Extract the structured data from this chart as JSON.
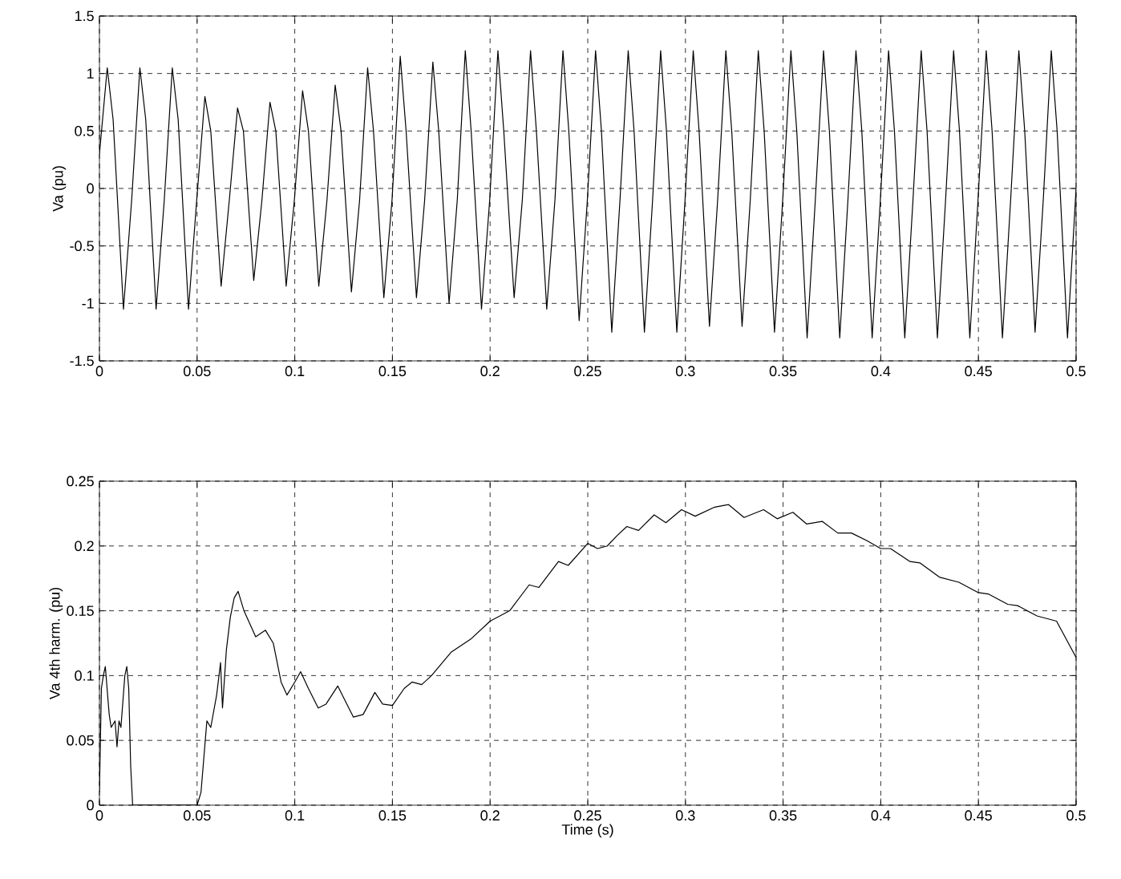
{
  "chart_data": [
    {
      "type": "line",
      "ylabel": "Va (pu)",
      "xlim": [
        0,
        0.5
      ],
      "ylim": [
        -1.5,
        1.5
      ],
      "grid": true,
      "xticks": [
        0,
        0.05,
        0.1,
        0.15,
        0.2,
        0.25,
        0.3,
        0.35,
        0.4,
        0.45,
        0.5
      ],
      "yticks": [
        -1.5,
        -1,
        -0.5,
        0,
        0.5,
        1,
        1.5
      ],
      "series": [
        {
          "color": "#000000",
          "x": [
            0,
            0.004,
            0.007,
            0.0123,
            0.0165,
            0.0207,
            0.0237,
            0.029,
            0.0332,
            0.0373,
            0.0403,
            0.0456,
            0.0498,
            0.054,
            0.057,
            0.0623,
            0.0665,
            0.0707,
            0.0737,
            0.079,
            0.0832,
            0.0873,
            0.0903,
            0.0956,
            0.0998,
            0.104,
            0.107,
            0.1123,
            0.1165,
            0.1207,
            0.1237,
            0.129,
            0.1332,
            0.1373,
            0.1403,
            0.1456,
            0.1498,
            0.154,
            0.157,
            0.1623,
            0.1665,
            0.1707,
            0.1737,
            0.179,
            0.1832,
            0.1873,
            0.1903,
            0.1956,
            0.1998,
            0.204,
            0.207,
            0.2123,
            0.2165,
            0.2207,
            0.2237,
            0.229,
            0.2332,
            0.2373,
            0.2403,
            0.2456,
            0.2498,
            0.254,
            0.257,
            0.2623,
            0.2665,
            0.2707,
            0.2737,
            0.279,
            0.2832,
            0.2873,
            0.2903,
            0.2956,
            0.2998,
            0.304,
            0.307,
            0.3123,
            0.3165,
            0.3207,
            0.3237,
            0.329,
            0.3332,
            0.3373,
            0.3403,
            0.3456,
            0.3498,
            0.354,
            0.357,
            0.3623,
            0.3665,
            0.3707,
            0.3737,
            0.379,
            0.3832,
            0.3873,
            0.3903,
            0.3956,
            0.3998,
            0.404,
            0.407,
            0.4123,
            0.4165,
            0.4207,
            0.4237,
            0.429,
            0.4332,
            0.4373,
            0.4403,
            0.4456,
            0.4498,
            0.454,
            0.457,
            0.4623,
            0.4665,
            0.4707,
            0.4737,
            0.479,
            0.4832,
            0.4873,
            0.4903,
            0.4956,
            0.5
          ],
          "values": [
            0.3,
            1.05,
            0.6,
            -1.05,
            -0.1,
            1.05,
            0.6,
            -1.05,
            -0.1,
            1.05,
            0.6,
            -1.05,
            -0.1,
            0.8,
            0.5,
            -0.85,
            -0.1,
            0.7,
            0.5,
            -0.8,
            -0.1,
            0.75,
            0.5,
            -0.85,
            -0.1,
            0.85,
            0.5,
            -0.85,
            -0.1,
            0.9,
            0.5,
            -0.9,
            -0.1,
            1.05,
            0.5,
            -0.95,
            -0.1,
            1.15,
            0.5,
            -0.95,
            -0.1,
            1.1,
            0.5,
            -1.0,
            -0.1,
            1.2,
            0.5,
            -1.05,
            -0.1,
            1.2,
            0.5,
            -0.95,
            -0.1,
            1.2,
            0.5,
            -1.05,
            -0.1,
            1.2,
            0.5,
            -1.15,
            -0.1,
            1.2,
            0.5,
            -1.25,
            -0.1,
            1.2,
            0.5,
            -1.25,
            -0.1,
            1.2,
            0.5,
            -1.25,
            -0.1,
            1.2,
            0.5,
            -1.2,
            -0.1,
            1.2,
            0.5,
            -1.2,
            -0.1,
            1.2,
            0.5,
            -1.25,
            -0.1,
            1.2,
            0.5,
            -1.3,
            -0.1,
            1.2,
            0.5,
            -1.3,
            -0.1,
            1.2,
            0.5,
            -1.3,
            -0.1,
            1.2,
            0.5,
            -1.3,
            -0.1,
            1.2,
            0.5,
            -1.3,
            -0.1,
            1.2,
            0.5,
            -1.3,
            -0.1,
            1.2,
            0.5,
            -1.3,
            -0.1,
            1.2,
            0.5,
            -1.25,
            -0.1,
            1.2,
            0.5,
            -1.3,
            0.0
          ]
        }
      ]
    },
    {
      "type": "line",
      "xlabel": "Time (s)",
      "ylabel": "Va 4th harm. (pu)",
      "xlim": [
        0,
        0.5
      ],
      "ylim": [
        0,
        0.25
      ],
      "grid": true,
      "xticks": [
        0,
        0.05,
        0.1,
        0.15,
        0.2,
        0.25,
        0.3,
        0.35,
        0.4,
        0.45,
        0.5
      ],
      "yticks": [
        0,
        0.05,
        0.1,
        0.15,
        0.2,
        0.25
      ],
      "series": [
        {
          "color": "#000000",
          "x": [
            0,
            0.001,
            0.002,
            0.003,
            0.005,
            0.006,
            0.008,
            0.009,
            0.01,
            0.011,
            0.013,
            0.014,
            0.015,
            0.016,
            0.017,
            0.05,
            0.052,
            0.055,
            0.057,
            0.06,
            0.062,
            0.063,
            0.065,
            0.067,
            0.069,
            0.071,
            0.074,
            0.08,
            0.085,
            0.089,
            0.093,
            0.096,
            0.1,
            0.103,
            0.107,
            0.112,
            0.116,
            0.122,
            0.126,
            0.13,
            0.135,
            0.141,
            0.145,
            0.15,
            0.156,
            0.16,
            0.165,
            0.17,
            0.18,
            0.19,
            0.2,
            0.21,
            0.22,
            0.225,
            0.235,
            0.24,
            0.25,
            0.255,
            0.26,
            0.265,
            0.27,
            0.276,
            0.284,
            0.29,
            0.298,
            0.305,
            0.315,
            0.322,
            0.33,
            0.34,
            0.347,
            0.355,
            0.362,
            0.37,
            0.378,
            0.385,
            0.393,
            0.4,
            0.405,
            0.415,
            0.42,
            0.43,
            0.44,
            0.45,
            0.455,
            0.465,
            0.47,
            0.48,
            0.49,
            0.5
          ],
          "values": [
            0.01,
            0.09,
            0.1,
            0.107,
            0.07,
            0.06,
            0.065,
            0.045,
            0.065,
            0.06,
            0.1,
            0.107,
            0.09,
            0.03,
            0.0,
            0.0,
            0.01,
            0.065,
            0.06,
            0.085,
            0.11,
            0.075,
            0.12,
            0.145,
            0.16,
            0.165,
            0.15,
            0.13,
            0.135,
            0.125,
            0.095,
            0.085,
            0.095,
            0.103,
            0.09,
            0.075,
            0.078,
            0.092,
            0.08,
            0.068,
            0.07,
            0.087,
            0.078,
            0.077,
            0.09,
            0.095,
            0.093,
            0.1,
            0.118,
            0.128,
            0.142,
            0.15,
            0.17,
            0.168,
            0.188,
            0.185,
            0.202,
            0.198,
            0.2,
            0.208,
            0.215,
            0.212,
            0.224,
            0.218,
            0.228,
            0.223,
            0.23,
            0.232,
            0.222,
            0.228,
            0.221,
            0.226,
            0.217,
            0.219,
            0.21,
            0.21,
            0.204,
            0.198,
            0.198,
            0.188,
            0.187,
            0.176,
            0.172,
            0.164,
            0.163,
            0.155,
            0.154,
            0.146,
            0.142,
            0.114
          ]
        }
      ]
    }
  ]
}
